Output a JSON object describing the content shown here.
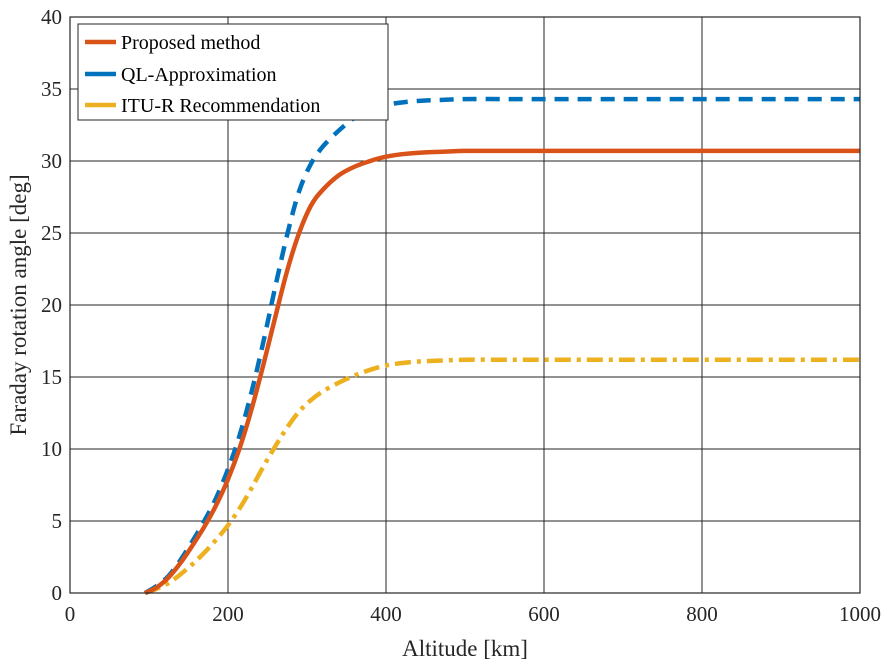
{
  "chart_data": {
    "type": "line",
    "title": "",
    "xlabel": "Altitude [km]",
    "ylabel": "Faraday rotation angle [deg]",
    "xlim": [
      0,
      1000
    ],
    "ylim": [
      0,
      40
    ],
    "xticks": [
      0,
      200,
      400,
      600,
      800,
      1000
    ],
    "yticks": [
      0,
      5,
      10,
      15,
      20,
      25,
      30,
      35,
      40
    ],
    "grid": true,
    "legend_position": "top-left",
    "x": [
      95,
      110,
      125,
      140,
      155,
      170,
      185,
      200,
      215,
      230,
      245,
      260,
      275,
      290,
      305,
      320,
      340,
      360,
      380,
      400,
      425,
      450,
      475,
      500,
      550,
      600,
      700,
      800,
      900,
      1000
    ],
    "series": [
      {
        "name": "Proposed method",
        "color": "#d95319",
        "dash": "solid",
        "values": [
          0.0,
          0.4,
          1.1,
          2.1,
          3.3,
          4.6,
          6.1,
          7.9,
          10.1,
          12.8,
          15.9,
          19.2,
          22.4,
          25.0,
          26.9,
          28.0,
          29.0,
          29.6,
          30.0,
          30.3,
          30.5,
          30.6,
          30.65,
          30.7,
          30.7,
          30.7,
          30.7,
          30.7,
          30.7,
          30.7
        ]
      },
      {
        "name": "QL-Approximation",
        "color": "#0072bd",
        "dash": "dashed",
        "values": [
          0.0,
          0.5,
          1.2,
          2.3,
          3.6,
          5.0,
          6.6,
          8.6,
          11.0,
          14.0,
          17.5,
          21.3,
          24.9,
          27.9,
          29.8,
          31.0,
          32.1,
          33.0,
          33.6,
          33.9,
          34.1,
          34.2,
          34.25,
          34.3,
          34.3,
          34.3,
          34.3,
          34.3,
          34.3,
          34.3
        ]
      },
      {
        "name": "ITU-R Recommendation",
        "color": "#edb120",
        "dash": "dashdot",
        "values": [
          0.0,
          0.3,
          0.7,
          1.3,
          2.0,
          2.8,
          3.7,
          4.7,
          5.9,
          7.3,
          8.8,
          10.2,
          11.5,
          12.6,
          13.4,
          14.0,
          14.6,
          15.1,
          15.5,
          15.8,
          16.0,
          16.1,
          16.15,
          16.2,
          16.2,
          16.2,
          16.2,
          16.2,
          16.2,
          16.2
        ]
      }
    ]
  }
}
